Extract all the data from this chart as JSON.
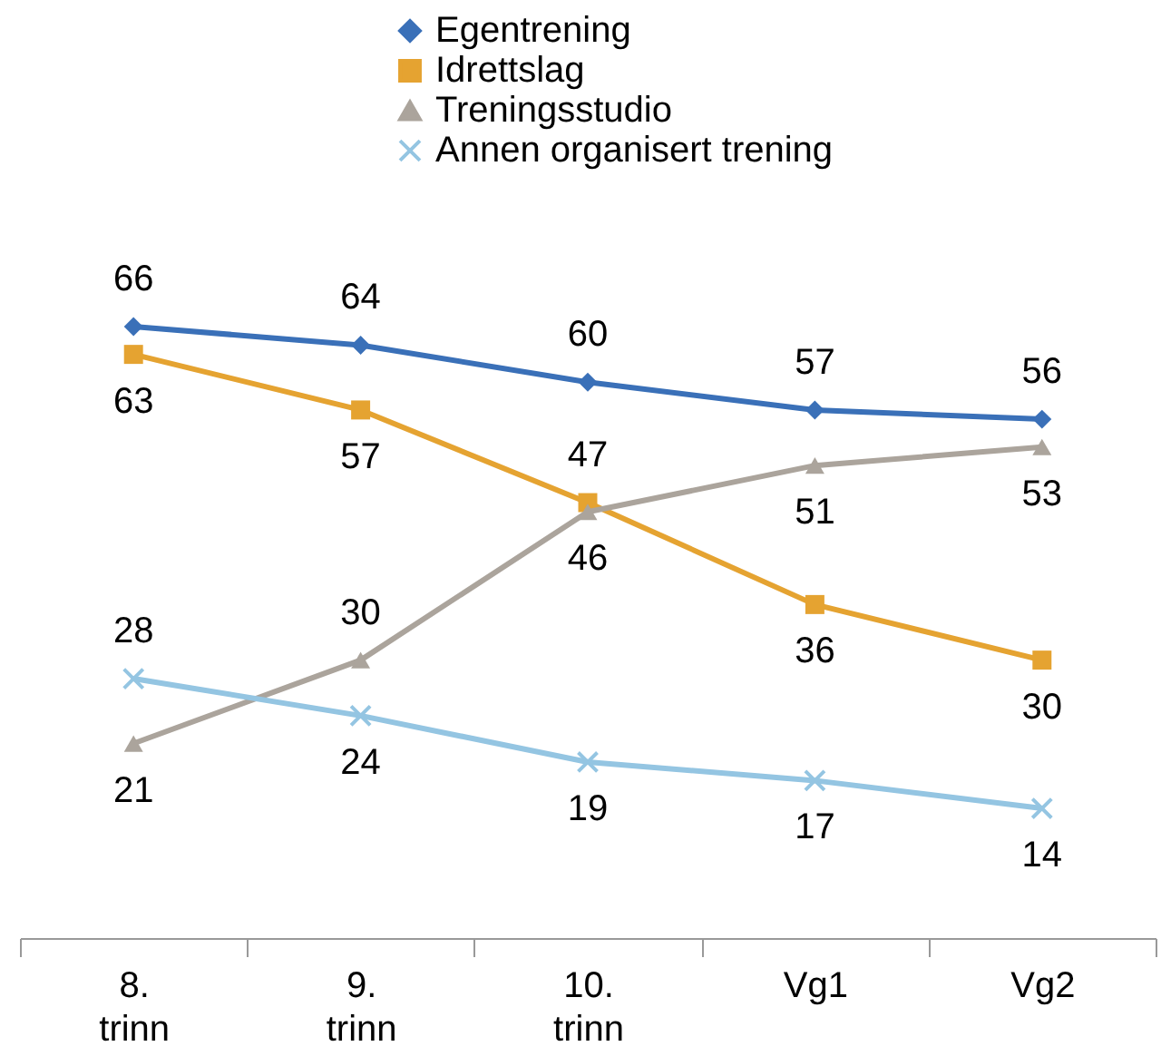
{
  "chart_data": {
    "type": "line",
    "categories": [
      "8. trinn",
      "9. trinn",
      "10. trinn",
      "Vg1",
      "Vg2"
    ],
    "series": [
      {
        "name": "Egentrening",
        "color": "#3a70b8",
        "marker": "diamond",
        "values": [
          66,
          64,
          60,
          57,
          56
        ]
      },
      {
        "name": "Idrettslag",
        "color": "#e5a331",
        "marker": "square",
        "values": [
          63,
          57,
          47,
          36,
          30
        ]
      },
      {
        "name": "Treningsstudio",
        "color": "#aba49c",
        "marker": "triangle",
        "values": [
          21,
          30,
          46,
          51,
          53
        ]
      },
      {
        "name": "Annen organisert trening",
        "color": "#94c5e2",
        "marker": "cross",
        "values": [
          28,
          24,
          19,
          17,
          14
        ]
      }
    ],
    "data_labels": true,
    "legend": "top",
    "grid": false,
    "tick_labels": "x",
    "line_style": "solid"
  }
}
